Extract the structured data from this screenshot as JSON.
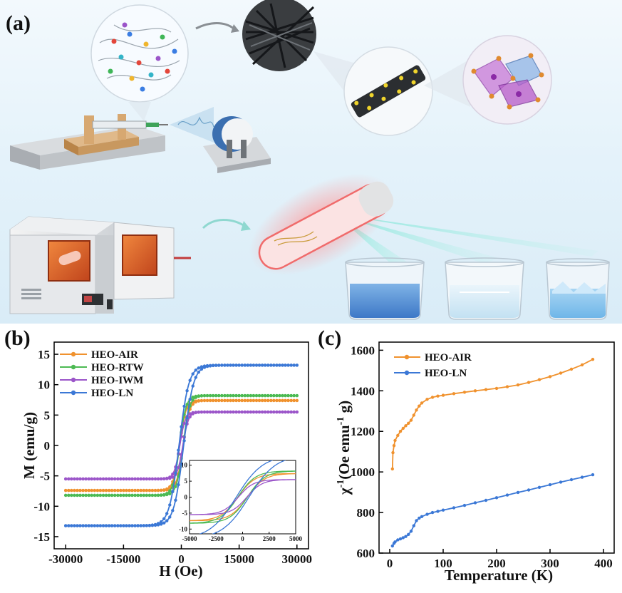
{
  "panels": {
    "a": "(a)",
    "b": "(b)",
    "c": "(c)"
  },
  "colors": {
    "HEO-AIR": "#f0922e",
    "HEO-RTW": "#4cba53",
    "HEO-IWM": "#9b55c9",
    "HEO-LN": "#3b78d6"
  },
  "chart_data": [
    {
      "type": "line",
      "panel": "(b)",
      "xlabel": "H (Oe)",
      "ylabel": "M (emu/g)",
      "xlim": [
        -33000,
        33000
      ],
      "ylim": [
        -17,
        17
      ],
      "xticks": [
        -30000,
        -15000,
        0,
        15000,
        30000
      ],
      "yticks": [
        -15,
        -10,
        -5,
        0,
        5,
        10,
        15
      ],
      "xtick_labels": [
        "-30000",
        "-15000",
        "0",
        "15000",
        "30000"
      ],
      "ytick_labels": [
        "-15",
        "-10",
        "-5",
        "0",
        "5",
        "10",
        "15"
      ],
      "legend_position": "top-left",
      "series": [
        {
          "name": "HEO-AIR",
          "Ms": 7.4,
          "Hsat": 3600,
          "Hc": 450
        },
        {
          "name": "HEO-RTW",
          "Ms": 8.2,
          "Hsat": 3700,
          "Hc": 450
        },
        {
          "name": "HEO-IWM",
          "Ms": 5.5,
          "Hsat": 3200,
          "Hc": 400
        },
        {
          "name": "HEO-LN",
          "Ms": 13.2,
          "Hsat": 5600,
          "Hc": 600
        }
      ],
      "inset": {
        "xlim": [
          -5000,
          5000
        ],
        "ylim": [
          -11.5,
          11.5
        ],
        "xticks": [
          -5000,
          -2500,
          0,
          2500,
          5000
        ],
        "yticks": [
          -10,
          -5,
          0,
          5,
          10
        ],
        "xtick_labels": [
          "-5000",
          "-2500",
          "0",
          "2500",
          "5000"
        ],
        "ytick_labels": [
          "-10",
          "-5",
          "0",
          "5",
          "10"
        ]
      }
    },
    {
      "type": "line",
      "panel": "(c)",
      "xlabel": "Temperature (K)",
      "ylabel_parts": [
        "χ",
        "-1",
        "(Oe emu",
        "-1",
        " g)"
      ],
      "xlim": [
        -20,
        420
      ],
      "ylim": [
        600,
        1640
      ],
      "xticks": [
        0,
        100,
        200,
        300,
        400
      ],
      "yticks": [
        600,
        800,
        1000,
        1200,
        1400,
        1600
      ],
      "xtick_labels": [
        "0",
        "100",
        "200",
        "300",
        "400"
      ],
      "ytick_labels": [
        "600",
        "800",
        "1000",
        "1200",
        "1400",
        "1600"
      ],
      "legend_position": "top-left",
      "series": [
        {
          "name": "HEO-AIR",
          "x": [
            5,
            6,
            8,
            10,
            15,
            20,
            25,
            30,
            35,
            40,
            45,
            50,
            55,
            60,
            70,
            80,
            90,
            100,
            120,
            140,
            160,
            180,
            200,
            220,
            240,
            260,
            280,
            300,
            320,
            340,
            360,
            380
          ],
          "y": [
            1015,
            1095,
            1130,
            1155,
            1180,
            1200,
            1215,
            1228,
            1240,
            1255,
            1280,
            1305,
            1325,
            1340,
            1358,
            1368,
            1374,
            1378,
            1386,
            1393,
            1400,
            1406,
            1412,
            1420,
            1429,
            1441,
            1455,
            1470,
            1487,
            1507,
            1528,
            1555
          ]
        },
        {
          "name": "HEO-LN",
          "x": [
            5,
            8,
            10,
            15,
            20,
            25,
            30,
            35,
            40,
            45,
            50,
            55,
            60,
            70,
            80,
            90,
            100,
            120,
            140,
            160,
            180,
            200,
            220,
            240,
            260,
            280,
            300,
            320,
            340,
            360,
            380
          ],
          "y": [
            635,
            648,
            655,
            665,
            670,
            676,
            682,
            692,
            708,
            735,
            760,
            772,
            780,
            791,
            800,
            806,
            812,
            823,
            835,
            848,
            860,
            873,
            886,
            899,
            911,
            924,
            937,
            950,
            962,
            974,
            986
          ]
        }
      ]
    }
  ]
}
